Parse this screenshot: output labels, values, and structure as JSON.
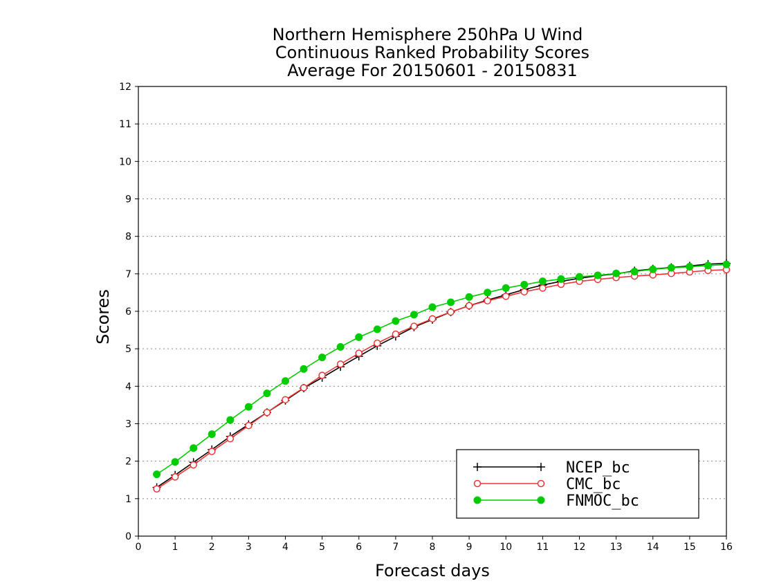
{
  "chart_data": {
    "type": "line",
    "title_lines": [
      "Northern Hemisphere 250hPa U Wind",
      "Continuous Ranked Probability Scores",
      "Average For 20150601 - 20150831"
    ],
    "xlabel": "Forecast days",
    "ylabel": "Scores",
    "xlim": [
      0,
      16
    ],
    "ylim": [
      0,
      12
    ],
    "xticks": [
      0,
      1,
      2,
      3,
      4,
      5,
      6,
      7,
      8,
      9,
      10,
      11,
      12,
      13,
      14,
      15,
      16
    ],
    "yticks": [
      0,
      1,
      2,
      3,
      4,
      5,
      6,
      7,
      8,
      9,
      10,
      11,
      12
    ],
    "grid": "horizontal dotted",
    "legend_position": "bottom-right",
    "x": [
      0.5,
      1,
      1.5,
      2,
      2.5,
      3,
      3.5,
      4,
      4.5,
      5,
      5.5,
      6,
      6.5,
      7,
      7.5,
      8,
      8.5,
      9,
      9.5,
      10,
      10.5,
      11,
      11.5,
      12,
      12.5,
      13,
      13.5,
      14,
      14.5,
      15,
      15.5,
      16
    ],
    "series": [
      {
        "name": "NCEP_bc",
        "color": "#000000",
        "marker": "plus",
        "values": [
          1.3,
          1.63,
          1.97,
          2.31,
          2.66,
          2.98,
          3.3,
          3.62,
          3.95,
          4.23,
          4.52,
          4.8,
          5.08,
          5.33,
          5.58,
          5.78,
          5.98,
          6.15,
          6.3,
          6.44,
          6.58,
          6.7,
          6.8,
          6.88,
          6.95,
          7.0,
          7.08,
          7.13,
          7.17,
          7.21,
          7.26,
          7.28
        ]
      },
      {
        "name": "CMC_bc",
        "color": "#ee3333",
        "marker": "open-circle",
        "values": [
          1.26,
          1.58,
          1.9,
          2.26,
          2.6,
          2.95,
          3.3,
          3.64,
          3.96,
          4.29,
          4.59,
          4.88,
          5.15,
          5.39,
          5.6,
          5.8,
          5.98,
          6.15,
          6.28,
          6.4,
          6.52,
          6.62,
          6.72,
          6.8,
          6.85,
          6.9,
          6.94,
          6.97,
          7.01,
          7.05,
          7.09,
          7.11
        ]
      },
      {
        "name": "FNMOC_bc",
        "color": "#00cc00",
        "marker": "filled-circle",
        "values": [
          1.65,
          1.98,
          2.35,
          2.72,
          3.1,
          3.45,
          3.81,
          4.14,
          4.46,
          4.77,
          5.05,
          5.31,
          5.52,
          5.74,
          5.91,
          6.11,
          6.24,
          6.38,
          6.5,
          6.62,
          6.71,
          6.8,
          6.86,
          6.92,
          6.96,
          7.01,
          7.06,
          7.12,
          7.16,
          7.19,
          7.22,
          7.25
        ]
      }
    ]
  }
}
